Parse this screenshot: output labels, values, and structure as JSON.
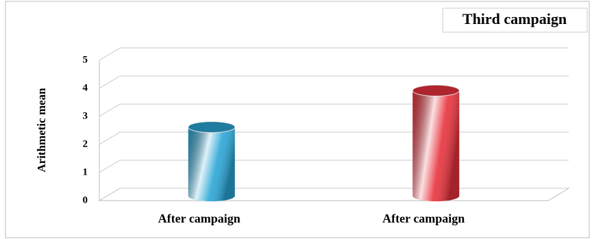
{
  "chart_data": {
    "type": "bar3d",
    "title": "Third campaign",
    "y_label": "Arithmetic mean",
    "categories": [
      "After campaign",
      "After campaign"
    ],
    "values": [
      2.4,
      3.7
    ],
    "colors": [
      "#2aa6d6",
      "#e8323c"
    ],
    "ylim": [
      0,
      5
    ],
    "yticks": [
      0,
      1,
      2,
      3,
      4,
      5
    ],
    "grid": true
  }
}
